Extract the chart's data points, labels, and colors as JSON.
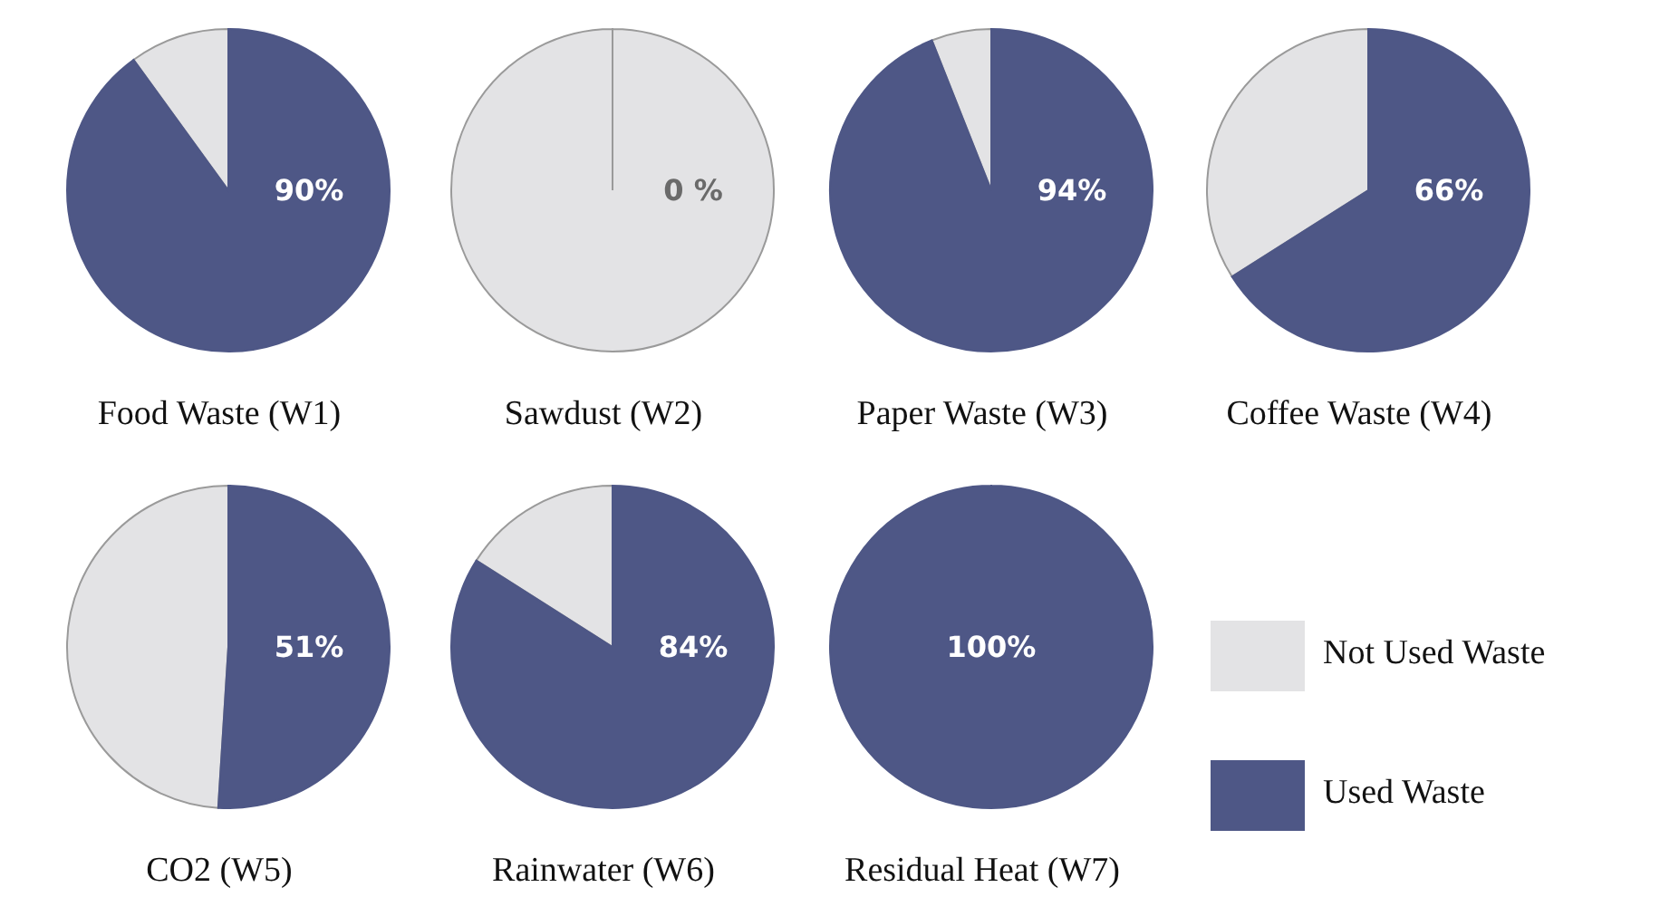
{
  "chart_data": [
    {
      "type": "pie",
      "title": "Food Waste (W1)",
      "categories": [
        null,
        null
      ],
      "values": [
        10,
        90
      ],
      "colors": [
        "#e3e3e5",
        "#4e5786"
      ],
      "value_labels": [
        null,
        "90%"
      ]
    },
    {
      "type": "pie",
      "title": "Sawdust (W2)",
      "categories": [
        null,
        null
      ],
      "values": [
        100,
        0
      ],
      "colors": [
        "#e3e3e5",
        "#4e5786"
      ],
      "value_labels": [
        null,
        "0 %"
      ]
    },
    {
      "type": "pie",
      "title": "Paper Waste (W3)",
      "categories": [
        null,
        null
      ],
      "values": [
        6,
        94
      ],
      "colors": [
        "#e3e3e5",
        "#4e5786"
      ],
      "value_labels": [
        null,
        "94%"
      ]
    },
    {
      "type": "pie",
      "title": "Coffee Waste (W4)",
      "categories": [
        null,
        null
      ],
      "values": [
        34,
        66
      ],
      "colors": [
        "#e3e3e5",
        "#4e5786"
      ],
      "value_labels": [
        null,
        "66%"
      ]
    },
    {
      "type": "pie",
      "title": "CO2 (W5)",
      "categories": [
        null,
        null
      ],
      "values": [
        49,
        51
      ],
      "colors": [
        "#e3e3e5",
        "#4e5786"
      ],
      "value_labels": [
        null,
        "51%"
      ]
    },
    {
      "type": "pie",
      "title": "Rainwater (W6)",
      "categories": [
        null,
        null
      ],
      "values": [
        16,
        84
      ],
      "colors": [
        "#e3e3e5",
        "#4e5786"
      ],
      "value_labels": [
        null,
        "84%"
      ]
    },
    {
      "type": "pie",
      "title": "Residual Heat (W7)",
      "categories": [
        "Not Used Waste",
        "Used Waste"
      ],
      "values": [
        0,
        100
      ],
      "colors": [
        "#e3e3e5",
        "#4e5786"
      ],
      "value_labels": [
        null,
        "100%"
      ],
      "legend": "right"
    }
  ]
}
